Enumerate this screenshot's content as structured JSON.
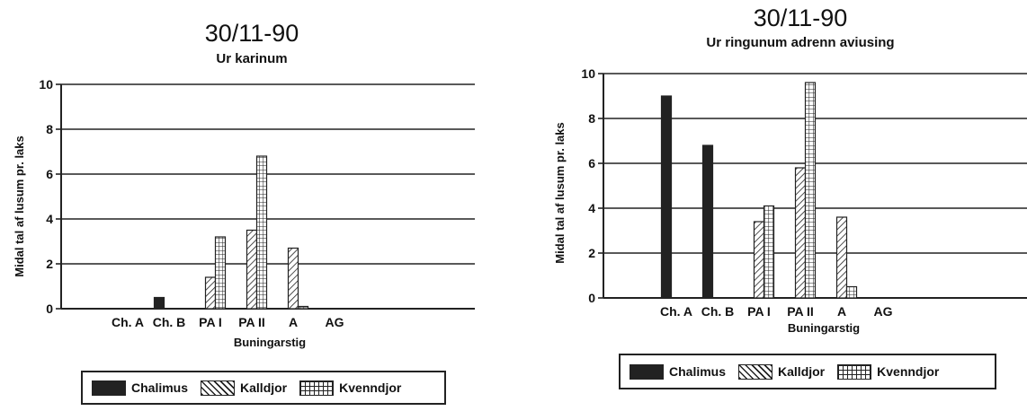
{
  "chart_data": [
    {
      "type": "bar",
      "title": "30/11-90",
      "subtitle": "Ur karinum",
      "xlabel": "Buningarstig",
      "ylabel": "Midal tal af lusum pr. laks",
      "categories": [
        "Ch. A",
        "Ch. B",
        "PA I",
        "PA II",
        "A",
        "AG"
      ],
      "ylim": [
        0,
        10
      ],
      "yticks": [
        "0",
        "2",
        "4",
        "6",
        "8",
        "10"
      ],
      "grid": true,
      "series": [
        {
          "name": "Chalimus",
          "pattern": "solid",
          "values": [
            0,
            0.5,
            0,
            0,
            0,
            0
          ]
        },
        {
          "name": "Kalldjor",
          "pattern": "hatch",
          "values": [
            0,
            0,
            1.4,
            3.5,
            2.7,
            0
          ]
        },
        {
          "name": "Kvenndjor",
          "pattern": "grid",
          "values": [
            0,
            0,
            3.2,
            6.8,
            0.1,
            0
          ]
        }
      ]
    },
    {
      "type": "bar",
      "title": "30/11-90",
      "subtitle": "Ur ringunum adrenn aviusing",
      "xlabel": "Buningarstig",
      "ylabel": "Midal tal af lusum pr. laks",
      "categories": [
        "Ch. A",
        "Ch. B",
        "PA I",
        "PA II",
        "A",
        "AG"
      ],
      "ylim": [
        0,
        10
      ],
      "yticks": [
        "0",
        "2",
        "4",
        "6",
        "8",
        "10"
      ],
      "grid": true,
      "series": [
        {
          "name": "Chalimus",
          "pattern": "solid",
          "values": [
            9.0,
            6.8,
            0,
            0,
            0,
            0
          ]
        },
        {
          "name": "Kalldjor",
          "pattern": "hatch",
          "values": [
            0,
            0,
            3.4,
            5.8,
            3.6,
            0
          ]
        },
        {
          "name": "Kvenndjor",
          "pattern": "grid",
          "values": [
            0,
            0,
            4.1,
            9.6,
            0.5,
            0
          ]
        }
      ]
    }
  ],
  "colors": {
    "ink": "#222222",
    "paper": "#ffffff"
  }
}
